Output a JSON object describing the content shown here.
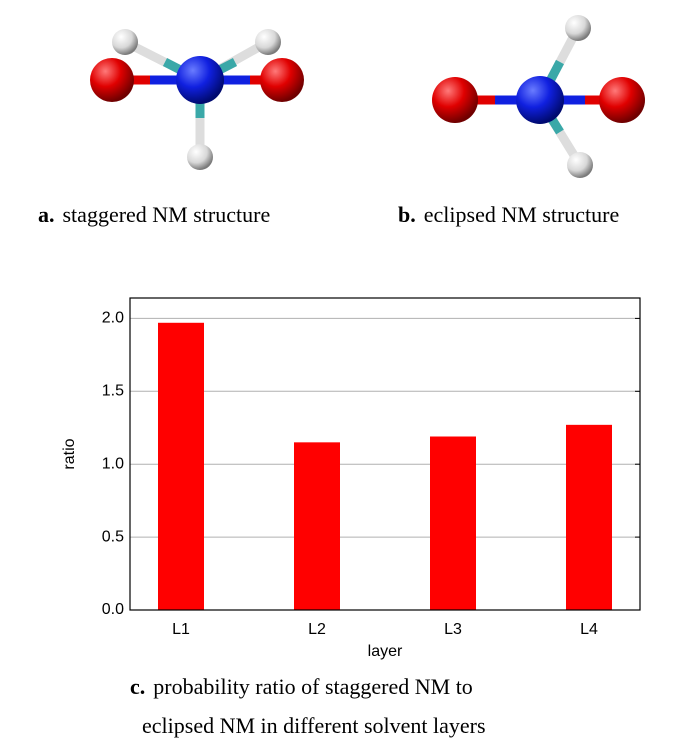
{
  "captions": {
    "a": {
      "label": "a.",
      "text": "staggered NM structure"
    },
    "b": {
      "label": "b.",
      "text": "eclipsed NM structure"
    },
    "c": {
      "label": "c.",
      "lines": [
        "probability ratio of staggered NM to",
        "eclipsed NM in different solvent layers"
      ]
    }
  },
  "chart_data": {
    "type": "bar",
    "x_label": "layer",
    "y_label": "ratio",
    "categories": [
      "L1",
      "L2",
      "L3",
      "L4"
    ],
    "values": [
      1.97,
      1.15,
      1.19,
      1.27
    ],
    "color": "#ff0000",
    "ylim": [
      0,
      2.14
    ],
    "yticks": [
      {
        "value": 0,
        "label": "0.0"
      },
      {
        "value": 0.5,
        "label": "0.5"
      },
      {
        "value": 1,
        "label": "1.0"
      },
      {
        "value": 1.5,
        "label": "1.5"
      },
      {
        "value": 2,
        "label": "2.0"
      }
    ],
    "grid": true
  }
}
